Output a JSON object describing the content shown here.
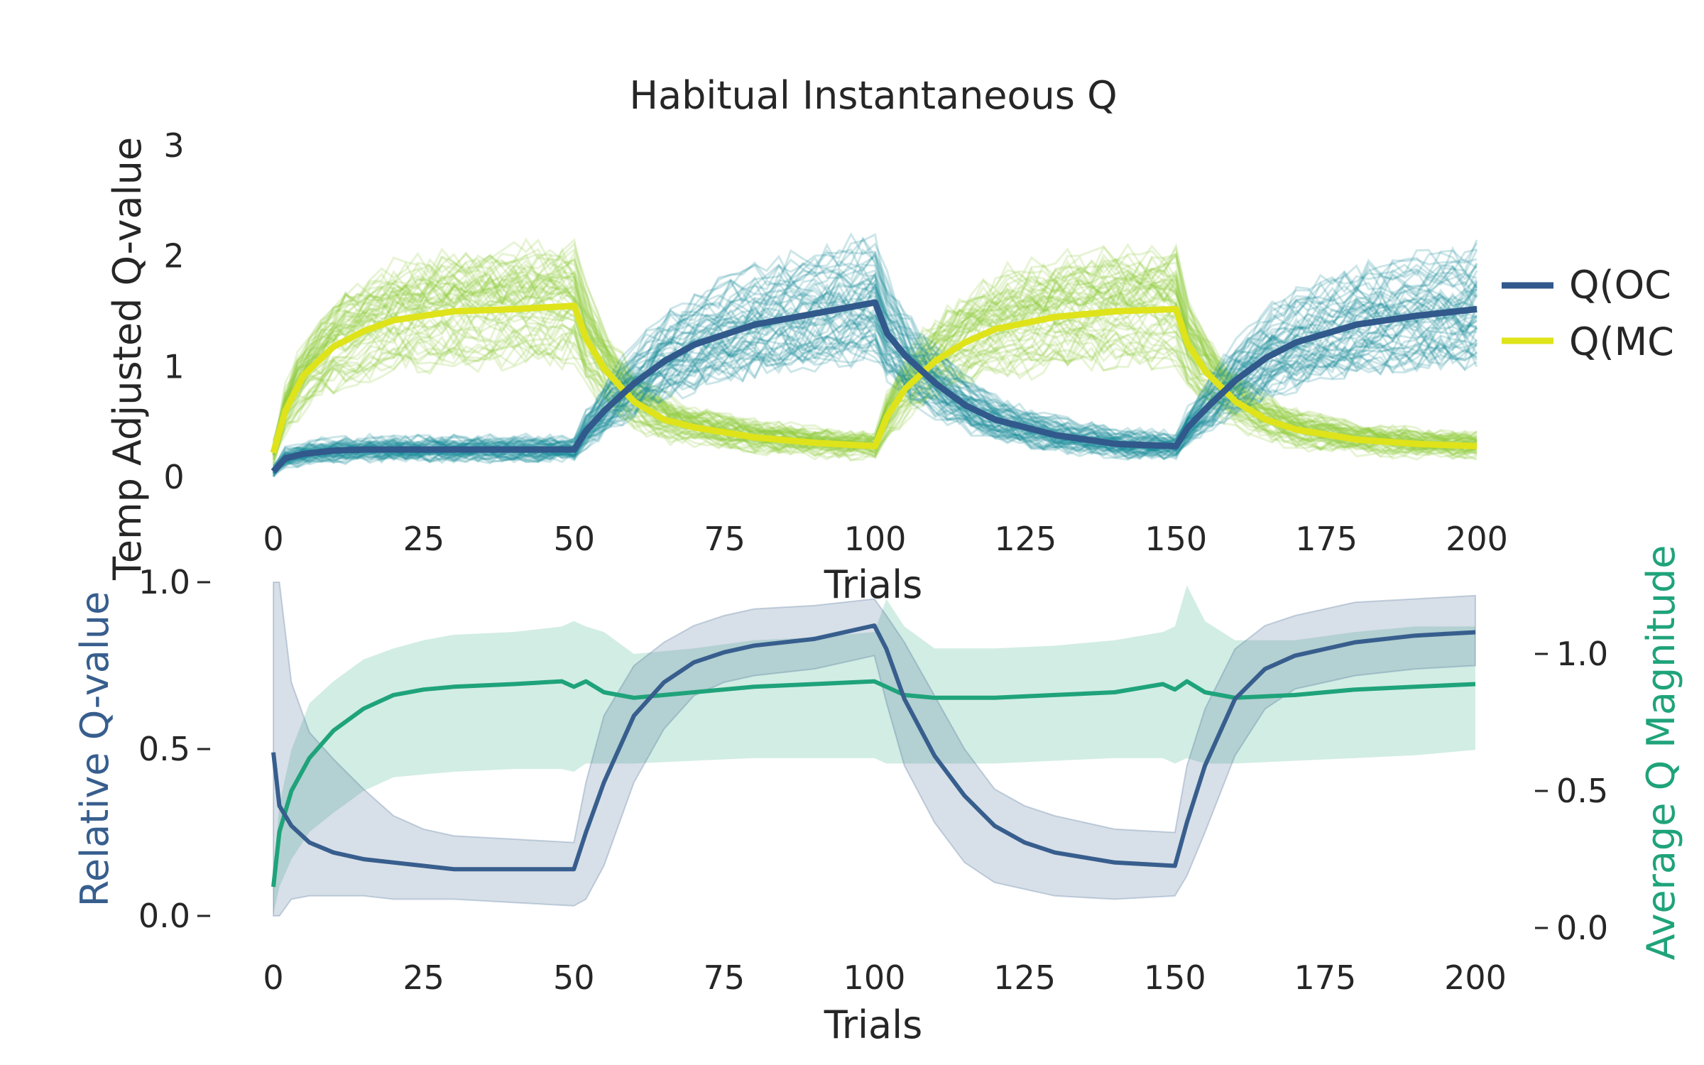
{
  "colors": {
    "q_oc": "#31598b",
    "q_mc": "#dfe31a",
    "oc_individual": "#1b8b99",
    "mc_individual": "#93cf3e",
    "relative": "#375e8d",
    "magnitude": "#1fa37a",
    "grid": "#ffffff"
  },
  "chart_data": [
    {
      "type": "line",
      "title": "Habitual Instantaneous Q",
      "xlabel": "Trials",
      "ylabel": "Temp Adjusted Q-value",
      "xlim": [
        0,
        200
      ],
      "ylim": [
        0,
        3
      ],
      "x_ticks": [
        "0",
        "25",
        "50",
        "75",
        "100",
        "125",
        "150",
        "175",
        "200"
      ],
      "y_ticks": [
        "0",
        "1",
        "2",
        "3"
      ],
      "legend": {
        "placement": "right",
        "entries": [
          "Q(OC",
          "Q(MC"
        ]
      },
      "series": [
        {
          "name": "Q(OC",
          "x": [
            0,
            2,
            5,
            10,
            15,
            20,
            30,
            40,
            50,
            52,
            55,
            60,
            65,
            70,
            80,
            90,
            100,
            102,
            105,
            110,
            115,
            120,
            130,
            140,
            150,
            152,
            155,
            160,
            165,
            170,
            180,
            190,
            200
          ],
          "values": [
            0.05,
            0.17,
            0.21,
            0.24,
            0.25,
            0.25,
            0.25,
            0.25,
            0.25,
            0.42,
            0.6,
            0.85,
            1.05,
            1.2,
            1.38,
            1.48,
            1.58,
            1.3,
            1.1,
            0.85,
            0.65,
            0.52,
            0.38,
            0.3,
            0.28,
            0.45,
            0.62,
            0.88,
            1.08,
            1.22,
            1.38,
            1.46,
            1.52
          ]
        },
        {
          "name": "Q(MC",
          "x": [
            0,
            2,
            5,
            10,
            15,
            20,
            30,
            40,
            50,
            52,
            55,
            60,
            65,
            70,
            80,
            90,
            100,
            102,
            105,
            110,
            115,
            120,
            130,
            140,
            150,
            152,
            155,
            160,
            165,
            170,
            180,
            190,
            200
          ],
          "values": [
            0.22,
            0.6,
            0.92,
            1.18,
            1.32,
            1.42,
            1.5,
            1.52,
            1.55,
            1.25,
            0.98,
            0.68,
            0.52,
            0.45,
            0.36,
            0.31,
            0.28,
            0.55,
            0.8,
            1.05,
            1.22,
            1.34,
            1.45,
            1.5,
            1.52,
            1.2,
            0.95,
            0.68,
            0.52,
            0.43,
            0.34,
            0.3,
            0.28
          ]
        }
      ],
      "individual_runs": {
        "count_per_series": 60
      }
    },
    {
      "type": "line",
      "xlabel": "Trials",
      "ylabel": "Relative Q-value",
      "ylabel_right": "Average Q Magnitude",
      "xlim": [
        0,
        200
      ],
      "ylim": [
        0,
        1
      ],
      "ylim_right": [
        0,
        1.2
      ],
      "x_ticks": [
        "0",
        "25",
        "50",
        "75",
        "100",
        "125",
        "150",
        "175",
        "200"
      ],
      "y_ticks": [
        "0.0",
        "0.5",
        "1.0"
      ],
      "y_ticks_right": [
        "0.0",
        "0.5",
        "1.0"
      ],
      "grid": true,
      "series": [
        {
          "name": "Relative Q-value",
          "axis": "left",
          "x": [
            0,
            1,
            3,
            6,
            10,
            15,
            20,
            25,
            30,
            40,
            50,
            52,
            55,
            60,
            65,
            70,
            75,
            80,
            90,
            100,
            102,
            105,
            110,
            115,
            120,
            125,
            130,
            140,
            150,
            152,
            155,
            160,
            165,
            170,
            175,
            180,
            190,
            200
          ],
          "values": [
            0.49,
            0.33,
            0.27,
            0.22,
            0.19,
            0.17,
            0.16,
            0.15,
            0.14,
            0.14,
            0.14,
            0.25,
            0.4,
            0.6,
            0.7,
            0.76,
            0.79,
            0.81,
            0.83,
            0.87,
            0.8,
            0.65,
            0.48,
            0.36,
            0.27,
            0.22,
            0.19,
            0.16,
            0.15,
            0.28,
            0.45,
            0.65,
            0.74,
            0.78,
            0.8,
            0.82,
            0.84,
            0.85
          ],
          "band_upper": [
            1.0,
            1.0,
            0.7,
            0.55,
            0.47,
            0.38,
            0.3,
            0.26,
            0.24,
            0.23,
            0.22,
            0.4,
            0.6,
            0.75,
            0.82,
            0.87,
            0.9,
            0.92,
            0.93,
            0.95,
            0.9,
            0.82,
            0.66,
            0.5,
            0.38,
            0.33,
            0.3,
            0.26,
            0.25,
            0.45,
            0.62,
            0.8,
            0.87,
            0.9,
            0.92,
            0.94,
            0.95,
            0.96
          ],
          "band_lower": [
            0.0,
            0.0,
            0.05,
            0.06,
            0.06,
            0.06,
            0.05,
            0.05,
            0.05,
            0.04,
            0.03,
            0.05,
            0.15,
            0.4,
            0.56,
            0.66,
            0.7,
            0.72,
            0.74,
            0.78,
            0.64,
            0.45,
            0.28,
            0.16,
            0.1,
            0.08,
            0.06,
            0.05,
            0.06,
            0.12,
            0.25,
            0.48,
            0.62,
            0.68,
            0.7,
            0.72,
            0.74,
            0.75
          ]
        },
        {
          "name": "Average Q Magnitude",
          "axis": "right",
          "x": [
            0,
            1,
            3,
            6,
            10,
            15,
            20,
            25,
            30,
            40,
            48,
            50,
            52,
            55,
            60,
            70,
            80,
            90,
            100,
            102,
            105,
            110,
            120,
            130,
            140,
            148,
            150,
            152,
            155,
            160,
            170,
            180,
            190,
            200
          ],
          "values": [
            0.15,
            0.35,
            0.5,
            0.62,
            0.72,
            0.8,
            0.85,
            0.87,
            0.88,
            0.89,
            0.9,
            0.88,
            0.9,
            0.86,
            0.84,
            0.86,
            0.88,
            0.89,
            0.9,
            0.88,
            0.85,
            0.84,
            0.84,
            0.85,
            0.86,
            0.89,
            0.87,
            0.9,
            0.86,
            0.84,
            0.85,
            0.87,
            0.88,
            0.89
          ],
          "band_upper": [
            0.2,
            0.45,
            0.65,
            0.82,
            0.9,
            0.98,
            1.02,
            1.05,
            1.07,
            1.08,
            1.1,
            1.12,
            1.1,
            1.08,
            1.0,
            1.02,
            1.05,
            1.06,
            1.08,
            1.2,
            1.1,
            1.02,
            1.02,
            1.03,
            1.05,
            1.08,
            1.1,
            1.25,
            1.12,
            1.05,
            1.05,
            1.08,
            1.1,
            1.1
          ],
          "band_lower": [
            0.05,
            0.15,
            0.25,
            0.35,
            0.42,
            0.5,
            0.55,
            0.56,
            0.57,
            0.58,
            0.58,
            0.57,
            0.6,
            0.6,
            0.6,
            0.61,
            0.62,
            0.62,
            0.62,
            0.6,
            0.6,
            0.6,
            0.6,
            0.61,
            0.62,
            0.62,
            0.6,
            0.62,
            0.6,
            0.6,
            0.61,
            0.62,
            0.63,
            0.65
          ]
        }
      ]
    }
  ]
}
